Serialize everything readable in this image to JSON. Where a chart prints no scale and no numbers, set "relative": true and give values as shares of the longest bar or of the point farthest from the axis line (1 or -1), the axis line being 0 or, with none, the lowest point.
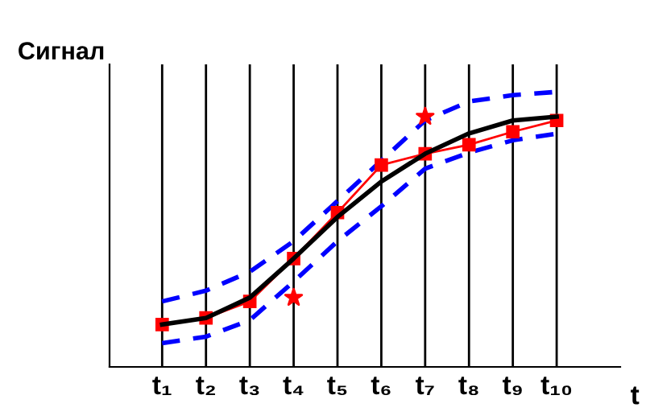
{
  "chart_data": {
    "type": "line",
    "relative": true,
    "ylabel": "Сигнал",
    "xlabel": "t",
    "categories": [
      "t₁",
      "t₂",
      "t₃",
      "t₄",
      "t₅",
      "t₆",
      "t₇",
      "t₈",
      "t₉",
      "t₁₀"
    ],
    "grid": "x",
    "legend": false,
    "series": [
      {
        "color": "#0000ff",
        "line_style": "dashed",
        "marker": "none",
        "values": [
          0.238,
          0.277,
          0.346,
          0.457,
          0.603,
          0.75,
          0.896,
          0.965,
          0.988,
          1
        ]
      },
      {
        "color": "#0000ff",
        "line_style": "dashed",
        "marker": "none",
        "values": [
          0.086,
          0.11,
          0.17,
          0.31,
          0.457,
          0.584,
          0.721,
          0.779,
          0.824,
          0.848
        ]
      },
      {
        "color": "#ff0000",
        "line_style": "solid",
        "marker": "square",
        "values": [
          0.154,
          0.178,
          0.238,
          0.394,
          0.561,
          0.734,
          0.775,
          0.808,
          0.855,
          0.896
        ]
      },
      {
        "color": "#000000",
        "line_style": "solid",
        "marker": "none",
        "values": [
          0.154,
          0.178,
          0.252,
          0.394,
          0.545,
          0.674,
          0.775,
          0.849,
          0.896,
          0.91
        ]
      },
      {
        "type": "scatter",
        "color": "#ff0000",
        "marker": "star",
        "values": [
          null,
          null,
          null,
          0.252,
          null,
          null,
          0.91,
          null,
          null,
          null
        ]
      }
    ]
  }
}
